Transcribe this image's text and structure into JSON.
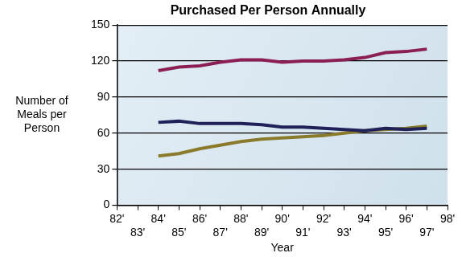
{
  "chart_data": {
    "type": "line",
    "title": "Purchased Per Person Annually",
    "x_label": "Year",
    "y_label": "Number of Meals per Person",
    "categories": [
      "82'",
      "83'",
      "84'",
      "85'",
      "86'",
      "87'",
      "88'",
      "89'",
      "90'",
      "91'",
      "92'",
      "93'",
      "94'",
      "95'",
      "96'",
      "97'",
      "98'"
    ],
    "series": [
      {
        "color": "#8b1f55",
        "values": [
          null,
          null,
          112,
          115,
          116,
          119,
          121,
          121,
          119,
          120,
          120,
          121,
          123,
          127,
          128,
          130,
          null
        ]
      },
      {
        "color": "#1f2158",
        "values": [
          null,
          null,
          69,
          70,
          68,
          68,
          68,
          67,
          65,
          65,
          64,
          63,
          62,
          64,
          63,
          64,
          null
        ]
      },
      {
        "color": "#8a7a2c",
        "values": [
          null,
          null,
          41,
          43,
          47,
          50,
          53,
          55,
          56,
          57,
          58,
          60,
          62,
          63,
          64,
          66,
          null
        ]
      }
    ],
    "ylim": [
      0,
      150
    ],
    "yticks": [
      0,
      30,
      60,
      90,
      120,
      150
    ],
    "grid": true
  }
}
